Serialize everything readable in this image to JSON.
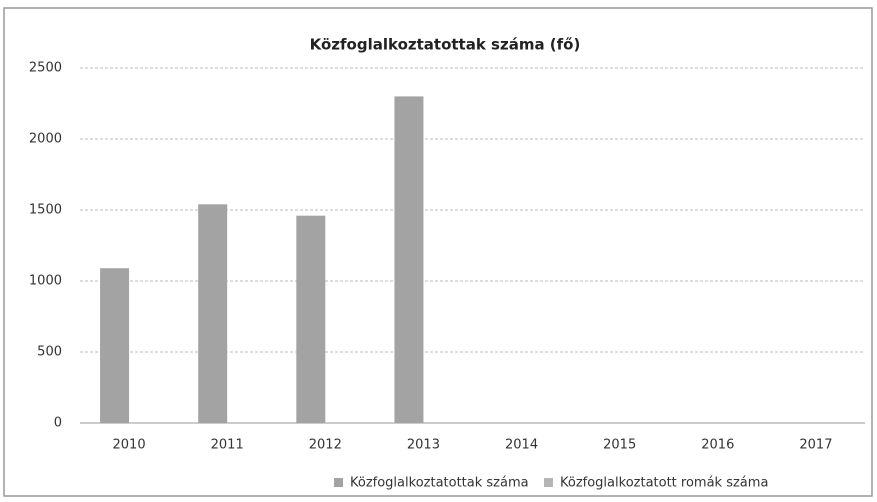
{
  "chart_data": {
    "type": "bar",
    "title": "Közfoglalkoztatottak száma (fő)",
    "categories": [
      "2010",
      "2011",
      "2012",
      "2013",
      "2014",
      "2015",
      "2016",
      "2017"
    ],
    "series": [
      {
        "name": "Közfoglalkoztatottak száma",
        "color": "#a3a3a3",
        "values": [
          1090,
          1540,
          1460,
          2300,
          null,
          null,
          null,
          null
        ]
      },
      {
        "name": "Közfoglalkoztatott romák száma",
        "color": "#b5b5b5",
        "values": [
          null,
          null,
          null,
          null,
          null,
          null,
          null,
          null
        ]
      }
    ],
    "ylim": [
      0,
      2500
    ],
    "yticks": [
      0,
      500,
      1000,
      1500,
      2000,
      2500
    ],
    "grid": true,
    "legend": "bottom"
  }
}
